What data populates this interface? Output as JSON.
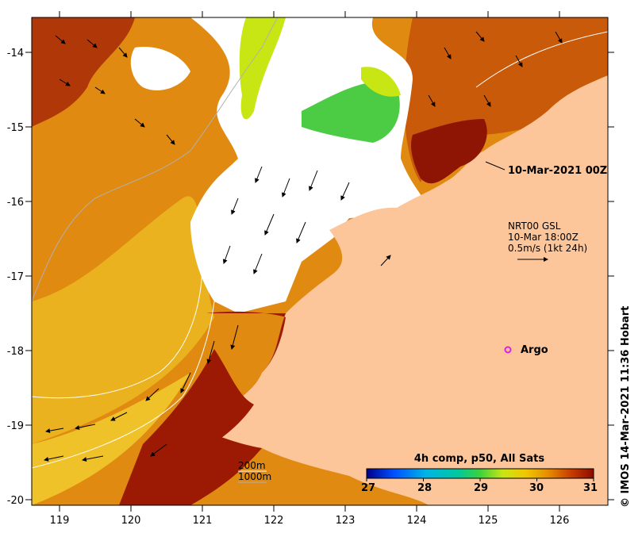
{
  "map": {
    "longitude_ticks": [
      "119",
      "120",
      "121",
      "122",
      "123",
      "124",
      "125",
      "126"
    ],
    "latitude_ticks": [
      "-14",
      "-15",
      "-16",
      "-17",
      "-18",
      "-19",
      "-20"
    ],
    "lon_range": [
      118.65,
      126.75
    ],
    "lat_range": [
      -20.1,
      -13.55
    ]
  },
  "annotations": {
    "track_date": "10-Mar-2021 00Z",
    "current_source": "NRT00 GSL",
    "current_time": "10-Mar 18:00Z",
    "current_scale": "0.5m/s (1kt 24h)",
    "argo_label": "Argo",
    "contour_200": "200m",
    "contour_1000": "1000m"
  },
  "colorbar": {
    "title": "4h comp, p50, All Sats",
    "ticks": [
      "27",
      "28",
      "29",
      "30",
      "31"
    ],
    "range": [
      27,
      31
    ],
    "colors": [
      "#00008b",
      "#0080ff",
      "#00c8b4",
      "#3cd23c",
      "#c8e614",
      "#f0c800",
      "#e68c00",
      "#c83c00",
      "#8b0a00"
    ]
  },
  "colors": {
    "land": "#fcc69a",
    "warm_sst": "#e08a12",
    "hot_sst": "#9c1a04",
    "cloud": "#ffffff",
    "argo": "#e020e0"
  },
  "credit": "IMOS 14-Mar-2021 11:36 Hobart"
}
